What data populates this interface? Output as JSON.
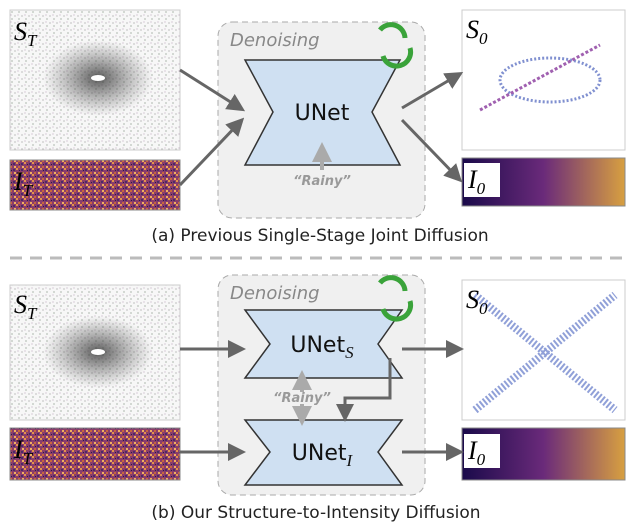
{
  "panel_a": {
    "noisy_structure": {
      "symbol": "S",
      "subscript": "T"
    },
    "noisy_intensity": {
      "symbol": "I",
      "subscript": "T"
    },
    "denoiser_label": "Denoising",
    "network": "UNet",
    "condition": "“Rainy”",
    "output_structure": {
      "symbol": "S",
      "subscript": "0"
    },
    "output_intensity": {
      "symbol": "I",
      "subscript": "0"
    },
    "caption": "(a) Previous Single-Stage Joint Diffusion"
  },
  "panel_b": {
    "noisy_structure": {
      "symbol": "S",
      "subscript": "T"
    },
    "noisy_intensity": {
      "symbol": "I",
      "subscript": "T"
    },
    "denoiser_label": "Denoising",
    "structure_network": {
      "name": "UNet",
      "subscript": "S"
    },
    "intensity_network": {
      "name": "UNet",
      "subscript": "I"
    },
    "condition": "“Rainy”",
    "output_structure": {
      "symbol": "S",
      "subscript": "0"
    },
    "output_intensity": {
      "symbol": "I",
      "subscript": "0"
    },
    "caption": "(b) Our Structure-to-Intensity Diffusion"
  }
}
